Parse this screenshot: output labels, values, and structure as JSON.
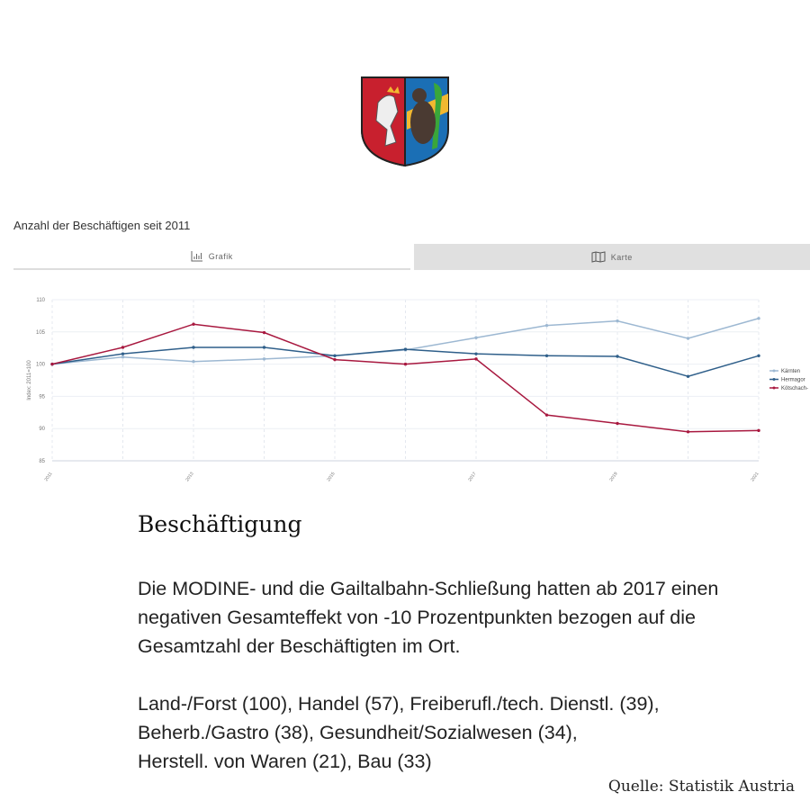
{
  "crest": {
    "name": "coat-of-arms",
    "colors": {
      "red": "#c8202e",
      "blue": "#1b6fb5",
      "gold": "#f2b830",
      "green": "#3aa63a"
    }
  },
  "chart_title": "Anzahl der Beschäftigen seit 2011",
  "tabs": [
    {
      "label": "Grafik",
      "icon": "bar-chart-icon",
      "active": true
    },
    {
      "label": "Karte",
      "icon": "map-icon",
      "active": false
    }
  ],
  "chart_data": {
    "type": "line",
    "ylabel": "Index: 2011=100",
    "ylim": [
      85,
      110
    ],
    "yticks": [
      85,
      90,
      95,
      100,
      105,
      110
    ],
    "x": [
      2011,
      2012,
      2013,
      2014,
      2015,
      2016,
      2017,
      2018,
      2019,
      2020,
      2021
    ],
    "xticks": [
      "2011",
      "2013",
      "2015",
      "2017",
      "2019",
      "2021"
    ],
    "grid": true,
    "legend": "right",
    "series": [
      {
        "name": "Kärnten",
        "color": "#9db8d2",
        "values": [
          100,
          101.1,
          100.4,
          100.8,
          101.3,
          102.2,
          104.1,
          106.0,
          106.7,
          104.0,
          107.1
        ]
      },
      {
        "name": "Hermagor",
        "color": "#2f5f8a",
        "values": [
          100,
          101.6,
          102.6,
          102.6,
          101.3,
          102.3,
          101.6,
          101.3,
          101.2,
          98.1,
          101.3
        ]
      },
      {
        "name": "Kötschach-",
        "color": "#a8183f",
        "values": [
          100,
          102.6,
          106.2,
          104.9,
          100.7,
          100.0,
          100.8,
          92.1,
          90.8,
          89.5,
          89.7
        ]
      }
    ]
  },
  "heading": "Beschäftigung",
  "paragraph1": "Die MODINE- und die Gailtalbahn-Schließung hatten ab 2017 einen negativen Gesamteffekt von -10 Prozentpunkten bezogen auf die Gesamtzahl der Beschäftigten im Ort.",
  "paragraph2_lines": [
    "Land-/Forst (100), Handel (57), Freiberufl./tech. Dienstl. (39),",
    "Beherb./Gastro (38), Gesundheit/Sozialwesen (34),",
    "Herstell. von Waren (21), Bau (33)"
  ],
  "source": "Quelle: Statistik Austria"
}
